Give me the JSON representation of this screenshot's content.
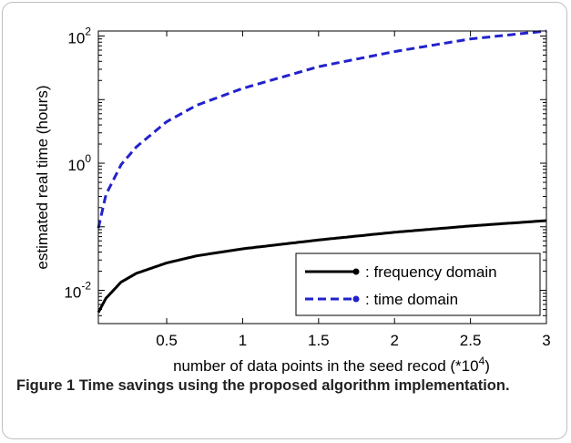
{
  "chart_data": {
    "type": "line",
    "title": "",
    "xlabel": "number of data points in the seed recod (*10^4)",
    "xlabel_main": "number of data points in the seed recod (*10",
    "xlabel_sup": "4",
    "xlabel_end": ")",
    "ylabel": "estimated real time  (hours)",
    "xlim": [
      0.05,
      3
    ],
    "ylim": [
      0.003,
      120
    ],
    "yscale": "log",
    "x_ticks": [
      0.5,
      1,
      1.5,
      2,
      2.5,
      3
    ],
    "x_tick_labels": [
      "0.5",
      "1",
      "1.5",
      "2",
      "2.5",
      "3"
    ],
    "y_ticks": [
      0.01,
      1,
      100
    ],
    "y_tick_bases": [
      "10",
      "10",
      "10"
    ],
    "y_tick_exps": [
      "-2",
      "0",
      "2"
    ],
    "grid": false,
    "legend_position": "bottom-right",
    "series": [
      {
        "name": ": frequency domain",
        "color": "#000000",
        "dash": "solid",
        "x": [
          0.05,
          0.1,
          0.2,
          0.3,
          0.5,
          0.7,
          1.0,
          1.5,
          2.0,
          2.5,
          3.0
        ],
        "y": [
          0.0045,
          0.0075,
          0.0135,
          0.0185,
          0.027,
          0.035,
          0.045,
          0.062,
          0.082,
          0.103,
          0.125
        ]
      },
      {
        "name": ": time domain",
        "color": "#2222cc",
        "dash": "dashed",
        "x": [
          0.05,
          0.1,
          0.2,
          0.3,
          0.5,
          0.7,
          1.0,
          1.5,
          2.0,
          2.5,
          3.0
        ],
        "y": [
          0.095,
          0.32,
          0.95,
          1.8,
          4.5,
          8.2,
          15,
          33,
          57,
          90,
          120
        ]
      }
    ]
  },
  "caption": {
    "label": "Figure 1",
    "text": "Time savings using the proposed algorithm implementation."
  }
}
